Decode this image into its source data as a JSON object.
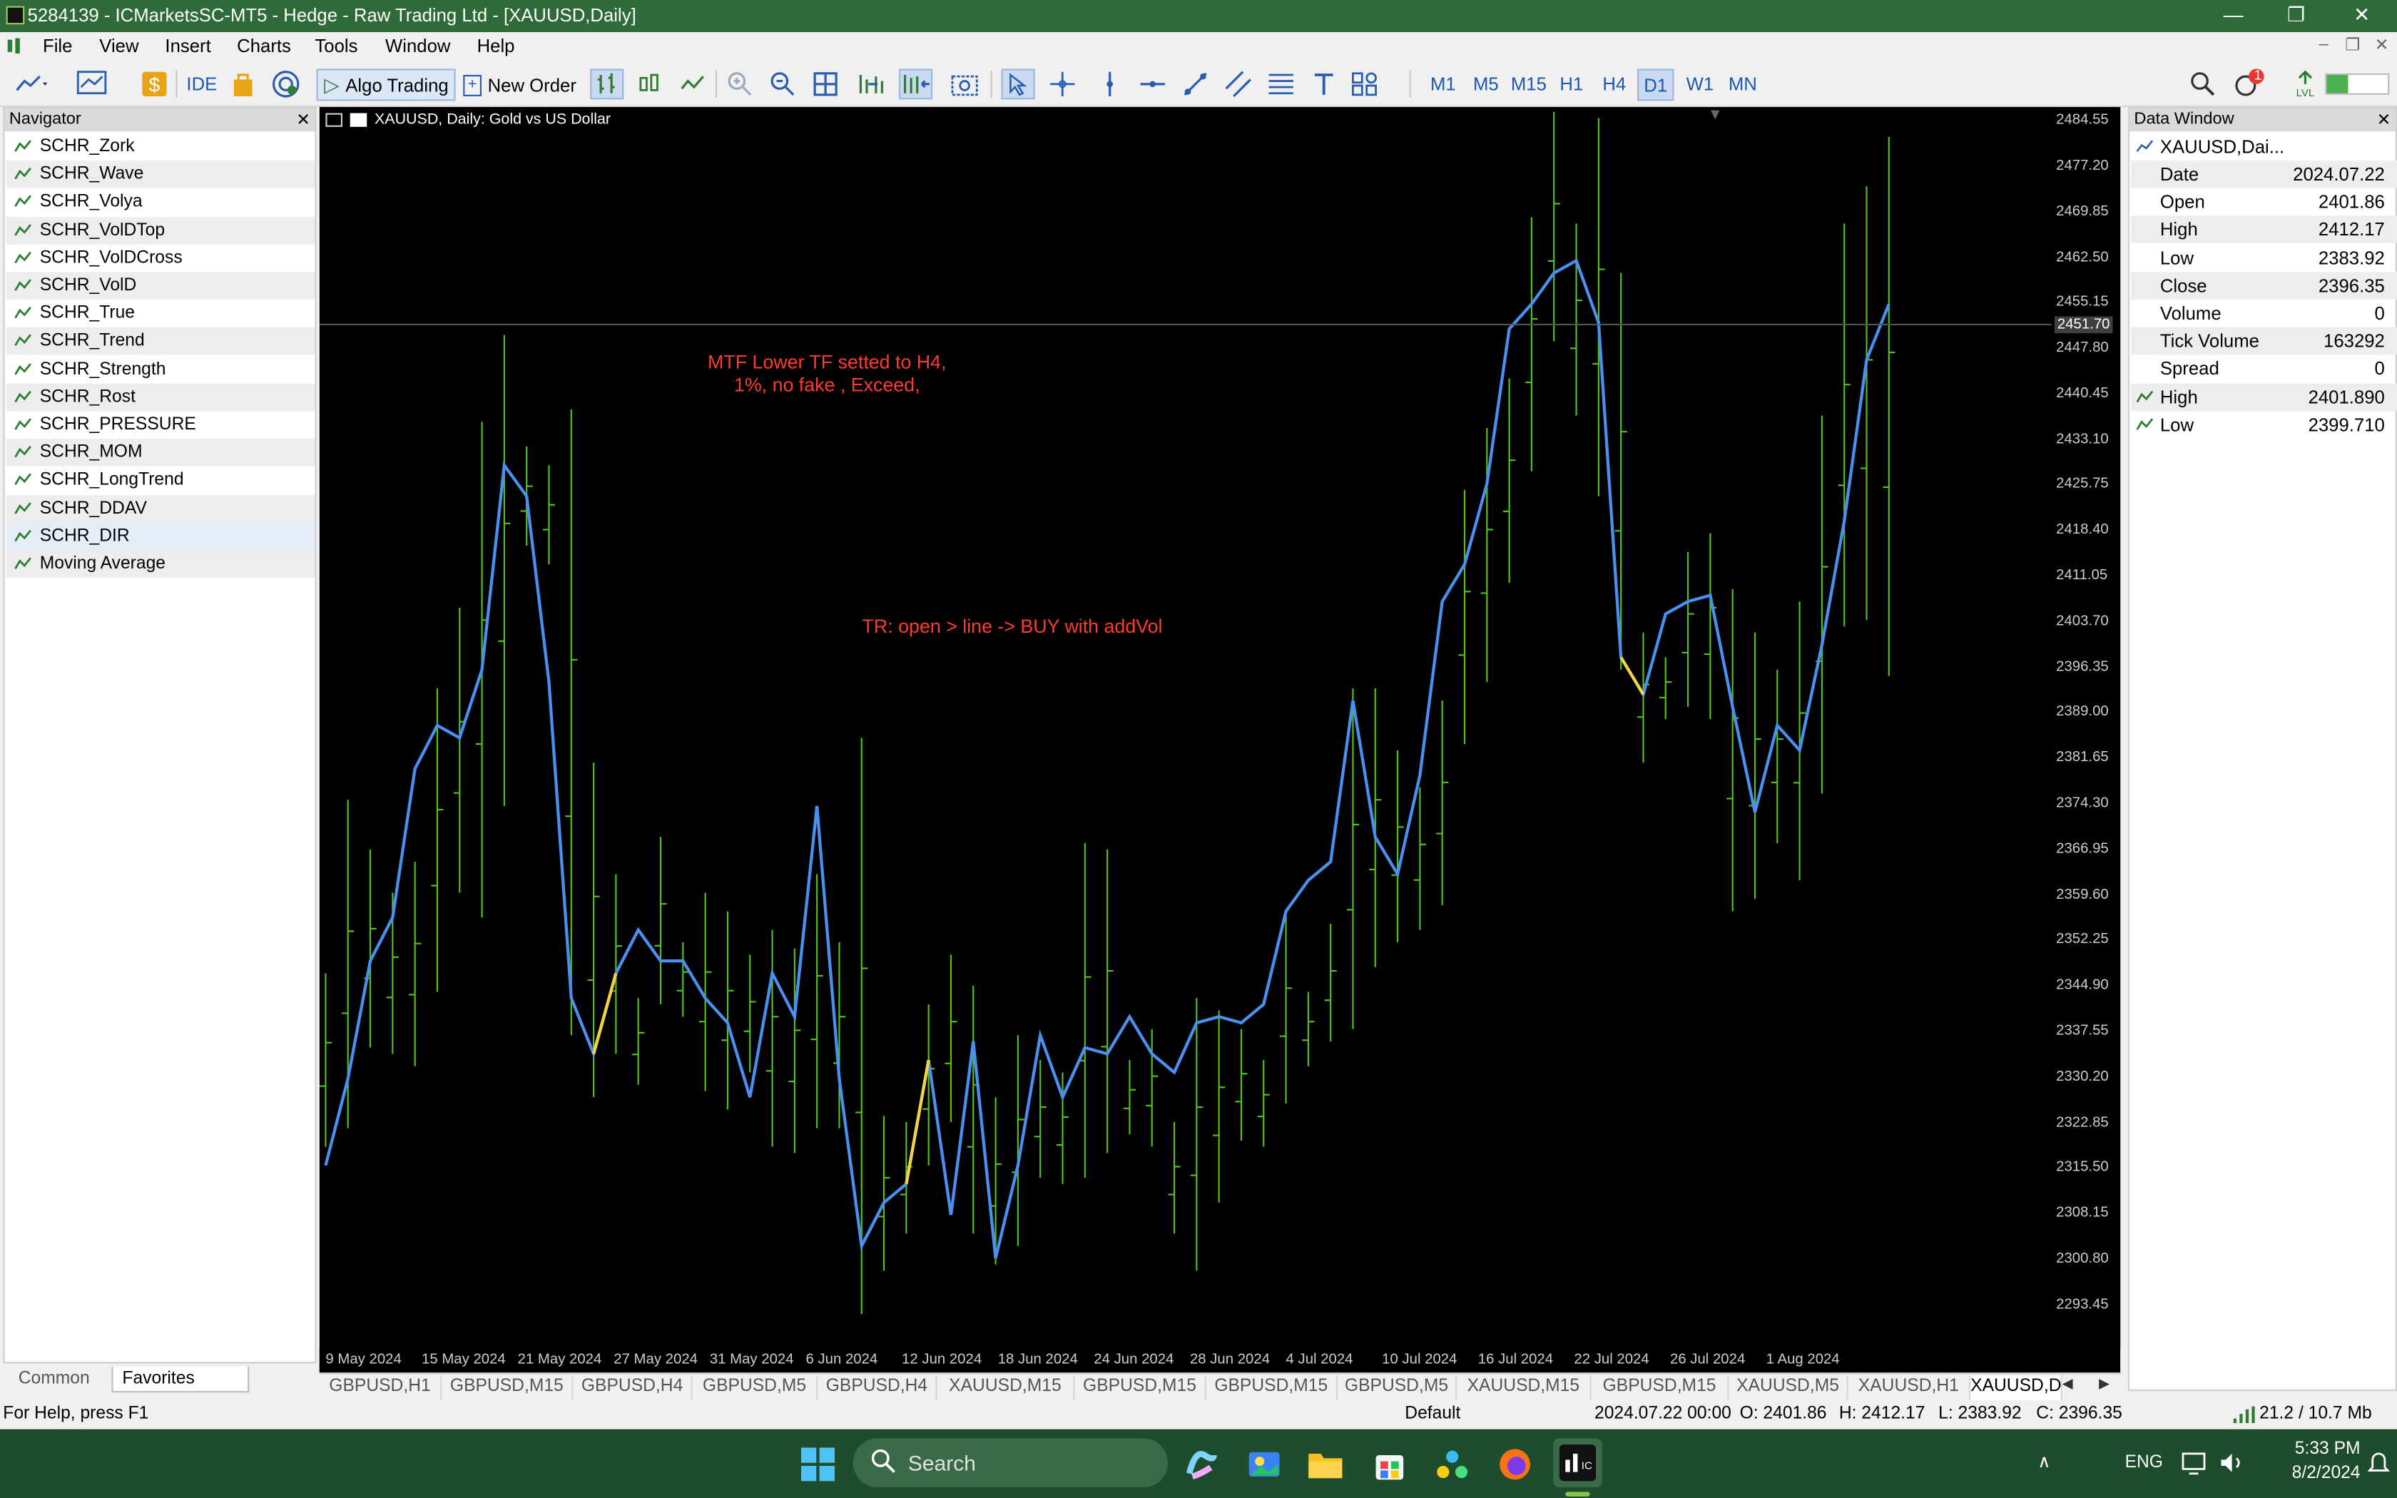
{
  "window": {
    "title": "5284139 - ICMarketsSC-MT5 - Hedge - Raw Trading Ltd - [XAUUSD,Daily]",
    "minimize": "—",
    "restore": "❐",
    "close": "✕"
  },
  "menu": {
    "items": [
      "File",
      "View",
      "Insert",
      "Charts",
      "Tools",
      "Window",
      "Help"
    ]
  },
  "toolbar": {
    "ide_label": "IDE",
    "algo_trading_label": "Algo Trading",
    "new_order_label": "New Order",
    "timeframes": [
      "M1",
      "M5",
      "M15",
      "H1",
      "H4",
      "D1",
      "W1",
      "MN"
    ],
    "active_timeframe": "D1",
    "notification_count": "1",
    "colors": {
      "accent": "#1b57b4",
      "title_bar": "#2f6b38"
    }
  },
  "navigator": {
    "title": "Navigator",
    "items": [
      "SCHR_Zork",
      "SCHR_Wave",
      "SCHR_Volya",
      "SCHR_VolDTop",
      "SCHR_VolDCross",
      "SCHR_VolD",
      "SCHR_True",
      "SCHR_Trend",
      "SCHR_Strength",
      "SCHR_Rost",
      "SCHR_PRESSURE",
      "SCHR_MOM",
      "SCHR_LongTrend",
      "SCHR_DDAV",
      "SCHR_DIR",
      "Moving Average"
    ],
    "selected": "SCHR_DIR",
    "tabs": [
      "Common",
      "Favorites"
    ],
    "active_tab": "Favorites"
  },
  "chart": {
    "title": "XAUUSD, Daily:  Gold vs US Dollar",
    "annotation_1": "MTF Lower TF setted to H4,\n1%, no fake , Exceed,",
    "annotation_2": "TR: open > line -> BUY with addVol",
    "current_price_label": "2451.70",
    "tabs": [
      "GBPUSD,H1",
      "GBPUSD,M15",
      "GBPUSD,H4",
      "GBPUSD,M5",
      "GBPUSD,H4",
      "XAUUSD,M15",
      "GBPUSD,M15",
      "GBPUSD,M15",
      "GBPUSD,M5",
      "XAUUSD,M15",
      "GBPUSD,M15",
      "XAUUSD,M5",
      "XAUUSD,H1",
      "XAUUSD,D"
    ],
    "active_tab_index": 13
  },
  "chart_data": {
    "type": "line",
    "title": "XAUUSD, Daily:  Gold vs US Dollar",
    "xlabel": "",
    "ylabel": "",
    "ylim": [
      2286.5,
      2486.8
    ],
    "price_ticks": [
      "2484.55",
      "2477.20",
      "2469.85",
      "2462.50",
      "2455.15",
      "2447.80",
      "2440.45",
      "2433.10",
      "2425.75",
      "2418.40",
      "2411.05",
      "2403.70",
      "2396.35",
      "2389.00",
      "2381.65",
      "2374.30",
      "2366.95",
      "2359.60",
      "2352.25",
      "2344.90",
      "2337.55",
      "2330.20",
      "2322.85",
      "2315.50",
      "2308.15",
      "2300.80",
      "2293.45"
    ],
    "date_ticks": [
      "9 May 2024",
      "15 May 2024",
      "21 May 2024",
      "27 May 2024",
      "31 May 2024",
      "6 Jun 2024",
      "12 Jun 2024",
      "18 Jun 2024",
      "24 Jun 2024",
      "28 Jun 2024",
      "4 Jul 2024",
      "10 Jul 2024",
      "16 Jul 2024",
      "22 Jul 2024",
      "26 Jul 2024",
      "1 Aug 2024"
    ],
    "bar_color": "#52c41a",
    "line_color": "#4a90f0",
    "highlight_color": "#f5d442",
    "bars": [
      [
        2319,
        2347
      ],
      [
        2322,
        2375
      ],
      [
        2335,
        2367
      ],
      [
        2334,
        2360
      ],
      [
        2332,
        2365
      ],
      [
        2344,
        2393
      ],
      [
        2360,
        2406
      ],
      [
        2356,
        2436
      ],
      [
        2374,
        2450
      ],
      [
        2416,
        2432
      ],
      [
        2413,
        2429
      ],
      [
        2337,
        2438
      ],
      [
        2327,
        2381
      ],
      [
        2334,
        2363
      ],
      [
        2329,
        2343
      ],
      [
        2342,
        2369
      ],
      [
        2340,
        2352
      ],
      [
        2328,
        2360
      ],
      [
        2325,
        2357
      ],
      [
        2331,
        2350
      ],
      [
        2319,
        2354
      ],
      [
        2318,
        2351
      ],
      [
        2322,
        2363
      ],
      [
        2322,
        2352
      ],
      [
        2292,
        2385
      ],
      [
        2299,
        2324
      ],
      [
        2305,
        2323
      ],
      [
        2316,
        2342
      ],
      [
        2323,
        2350
      ],
      [
        2305,
        2345
      ],
      [
        2300,
        2327
      ],
      [
        2303,
        2337
      ],
      [
        2314,
        2333
      ],
      [
        2313,
        2331
      ],
      [
        2314,
        2368
      ],
      [
        2318,
        2367
      ],
      [
        2321,
        2333
      ],
      [
        2319,
        2338
      ],
      [
        2305,
        2323
      ],
      [
        2299,
        2343
      ],
      [
        2310,
        2341
      ],
      [
        2320,
        2338
      ],
      [
        2319,
        2333
      ],
      [
        2326,
        2357
      ],
      [
        2332,
        2344
      ],
      [
        2336,
        2355
      ],
      [
        2338,
        2393
      ],
      [
        2348,
        2393
      ],
      [
        2352,
        2383
      ],
      [
        2354,
        2377
      ],
      [
        2358,
        2391
      ],
      [
        2384,
        2425
      ],
      [
        2394,
        2435
      ],
      [
        2410,
        2443
      ],
      [
        2428,
        2469
      ],
      [
        2449,
        2486
      ],
      [
        2437,
        2468
      ],
      [
        2424,
        2485
      ],
      [
        2396,
        2460
      ],
      [
        2381,
        2402
      ],
      [
        2388,
        2398
      ],
      [
        2390,
        2415
      ],
      [
        2388,
        2418
      ],
      [
        2357,
        2409
      ],
      [
        2359,
        2402
      ],
      [
        2368,
        2396
      ],
      [
        2362,
        2407
      ],
      [
        2376,
        2437
      ],
      [
        2403,
        2468
      ],
      [
        2404,
        2474
      ],
      [
        2395,
        2482
      ]
    ],
    "line": [
      [
        2316,
        2330,
        2349,
        2356,
        2380,
        2387,
        2385,
        2396,
        2429,
        2424,
        2394,
        2343,
        2334,
        2347,
        2354,
        2349,
        2349,
        2343,
        2339,
        2327,
        2347,
        2340,
        2374,
        2330,
        2303,
        2310,
        2313,
        2333,
        2308,
        2336,
        2301,
        2316,
        2337,
        2327,
        2335,
        2334,
        2340,
        2334,
        2331,
        2339,
        2340,
        2339,
        2342,
        2357,
        2362,
        2365,
        2391,
        2369,
        2363,
        2379,
        2407,
        2413,
        2426,
        2451,
        2455,
        2460,
        2462,
        2452,
        2398,
        2392,
        2405,
        2407,
        2408,
        2390,
        2373,
        2387,
        2383,
        2400,
        2420,
        2446,
        2455
      ]
    ]
  },
  "data_window": {
    "title": "Data Window",
    "symbol": "XAUUSD,Dai...",
    "rows": [
      {
        "key": "Date",
        "value": "2024.07.22"
      },
      {
        "key": "Open",
        "value": "2401.86"
      },
      {
        "key": "High",
        "value": "2412.17"
      },
      {
        "key": "Low",
        "value": "2383.92"
      },
      {
        "key": "Close",
        "value": "2396.35"
      },
      {
        "key": "Volume",
        "value": "0"
      },
      {
        "key": "Tick Volume",
        "value": "163292"
      },
      {
        "key": "Spread",
        "value": "0"
      }
    ],
    "indicator_rows": [
      {
        "key": "High",
        "value": "2401.890"
      },
      {
        "key": "Low",
        "value": "2399.710"
      }
    ]
  },
  "statusbar": {
    "help": "For Help, press F1",
    "profile": "Default",
    "datetime": "2024.07.22 00:00",
    "open": "O: 2401.86",
    "high": "H: 2412.17",
    "low": "L: 2383.92",
    "close": "C: 2396.35",
    "traffic": "21.2 / 10.7 Mb"
  },
  "taskbar": {
    "search_placeholder": "Search",
    "language": "ENG",
    "time": "5:33 PM",
    "date": "8/2/2024"
  }
}
